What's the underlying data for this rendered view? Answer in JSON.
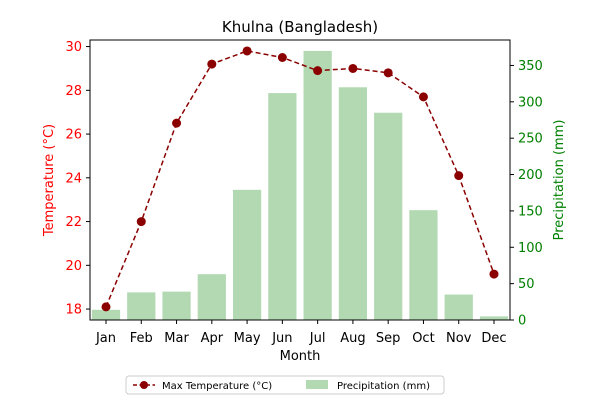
{
  "chart_data": {
    "type": "bar+line",
    "title": "Khulna (Bangladesh)",
    "xlabel": "Month",
    "categories": [
      "Jan",
      "Feb",
      "Mar",
      "Apr",
      "May",
      "Jun",
      "Jul",
      "Aug",
      "Sep",
      "Oct",
      "Nov",
      "Dec"
    ],
    "left_axis": {
      "label": "Temperature (°C)",
      "ylim": [
        17.5,
        30.3
      ],
      "ticks": [
        18,
        20,
        22,
        24,
        26,
        28,
        30
      ],
      "color": "#ff0000"
    },
    "right_axis": {
      "label": "Precipitation (mm)",
      "ylim": [
        0,
        385
      ],
      "ticks": [
        0,
        50,
        100,
        150,
        200,
        250,
        300,
        350
      ],
      "color": "#008000"
    },
    "series": [
      {
        "name": "Max Temperature (°C)",
        "type": "line",
        "axis": "left",
        "color": "#8b0000",
        "style": "dashed-with-circle-markers",
        "values": [
          18.1,
          22.0,
          26.5,
          29.2,
          29.8,
          29.5,
          28.9,
          29.0,
          28.8,
          27.7,
          24.1,
          19.6
        ]
      },
      {
        "name": "Precipitation (mm)",
        "type": "bar",
        "axis": "right",
        "color": "#b2d9b2",
        "values": [
          14,
          38,
          39,
          63,
          179,
          312,
          370,
          320,
          285,
          151,
          35,
          5
        ]
      }
    ],
    "legend": {
      "placement": "bottom-center"
    },
    "grid": false
  }
}
